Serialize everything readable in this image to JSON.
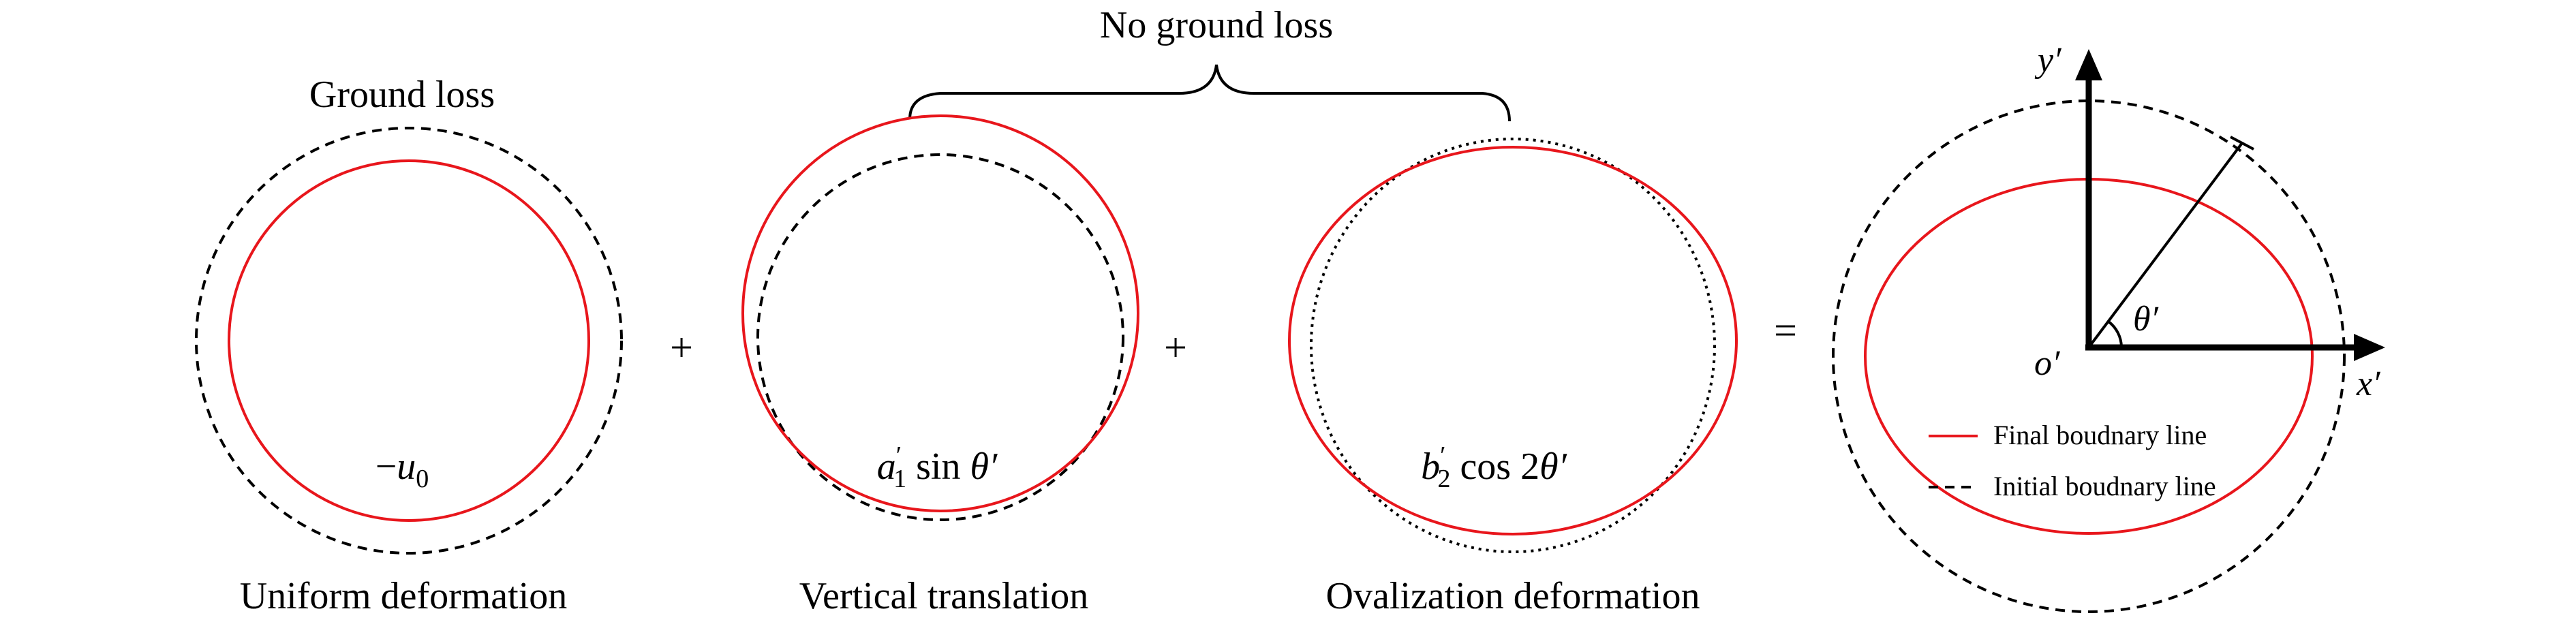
{
  "labels": {
    "ground_loss": "Ground loss",
    "no_ground_loss": "No ground loss",
    "uniform_deformation": "Uniform deformation",
    "vertical_translation": "Vertical translation",
    "ovalization_deformation": "Ovalization deformation"
  },
  "operators": {
    "plus_1": "+",
    "plus_2": "+",
    "equals": "="
  },
  "formulas": {
    "uniform": {
      "minus": "−",
      "symbol": "u",
      "subscript": "0"
    },
    "translation": {
      "coef": "a",
      "prime": "′",
      "subscript": "1",
      "func": " sin ",
      "angle": "θ′"
    },
    "ovalization": {
      "coef": "b",
      "prime": "′",
      "subscript": "2",
      "func": " cos 2",
      "angle": "θ′"
    }
  },
  "axes": {
    "x_label": "x′",
    "y_label": "y′",
    "origin_label": "o′",
    "angle_label": "θ′"
  },
  "legend": {
    "final": "Final boudnary line",
    "initial": "Initial boudnary line"
  },
  "colors": {
    "final_line": "#e8161c",
    "initial_line": "#000000"
  }
}
